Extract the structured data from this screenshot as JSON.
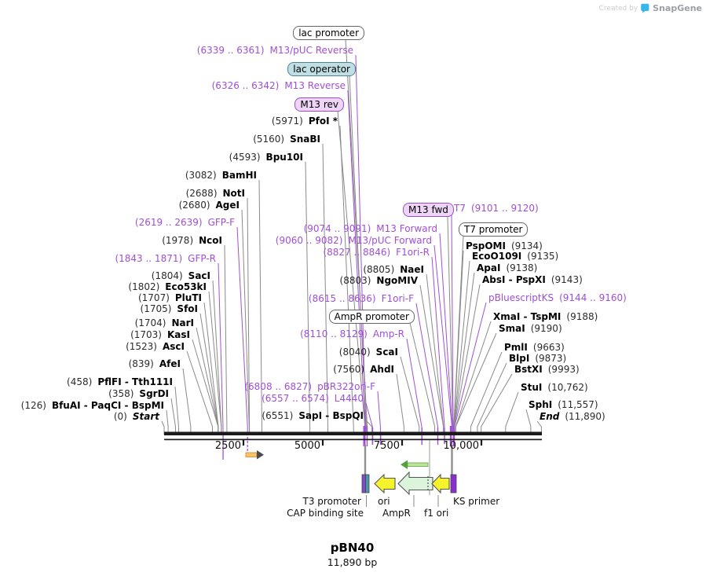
{
  "watermark": {
    "created_by": "Created by",
    "brand": "SnapGene"
  },
  "title": {
    "name": "pBN40",
    "size": "11,890 bp"
  },
  "map": {
    "length_bp": 11890,
    "ruler_ticks": [
      {
        "label": "2500",
        "bp": 2500
      },
      {
        "label": "5000",
        "bp": 5000
      },
      {
        "label": "7500",
        "bp": 7500
      },
      {
        "label": "10,000",
        "bp": 10000
      }
    ]
  },
  "colors": {
    "primer_purple": "#a04fd6",
    "enzyme_gray": "#8a8a8a",
    "backbone_black": "#1a1a1a",
    "primer_box_fill": "#eed5f8",
    "primer_box_border": "#9a4fd0",
    "operator_box_fill": "#bfdfe5",
    "operator_box_border": "#4e8595",
    "ori_yellow": "#f7f32a",
    "ampr_green_fill": "#dcf3dc",
    "arrow_outline": "#555555",
    "ks_primer_purple": "#8b2fd0",
    "t3_promoter_purple": "#7d4ad0",
    "cap_site_teal": "#4d96a8",
    "orange_fill": "#f6c26e",
    "orange_border": "#d89b3e",
    "dark_head": "#4a4a4a",
    "green_head": "#56a03e",
    "green_shaft": "#bce49c",
    "green_shaft_border": "#79b25c",
    "drop_gray": "#909090"
  },
  "annotations": [
    {
      "id": "lac-promoter",
      "kind": "box",
      "box_style": "white",
      "label": "lac promoter",
      "bp": 6400
    },
    {
      "id": "m13-puc-reverse",
      "kind": "primer",
      "pos": "(6339 .. 6361)",
      "name": "M13/pUC Reverse",
      "bp": 6350
    },
    {
      "id": "lac-operator",
      "kind": "box",
      "box_style": "teal",
      "label": "lac operator",
      "bp": 6374
    },
    {
      "id": "m13-reverse",
      "kind": "primer",
      "pos": "(6326 .. 6342)",
      "name": "M13 Reverse",
      "bp": 6334
    },
    {
      "id": "m13-rev",
      "kind": "box",
      "box_style": "purple",
      "label": "M13 rev",
      "bp": 6330
    },
    {
      "id": "pfoi",
      "kind": "enzyme",
      "pos": "(5971)",
      "name": "PfoI *",
      "bp": 5971
    },
    {
      "id": "snabi",
      "kind": "enzyme",
      "pos": "(5160)",
      "name": "SnaBI",
      "bp": 5160
    },
    {
      "id": "bpu10i",
      "kind": "enzyme",
      "pos": "(4593)",
      "name": "Bpu10I",
      "bp": 4593
    },
    {
      "id": "bamhi",
      "kind": "enzyme",
      "pos": "(3082)",
      "name": "BamHI",
      "bp": 3082
    },
    {
      "id": "noti",
      "kind": "enzyme",
      "pos": "(2688)",
      "name": "NotI",
      "bp": 2688
    },
    {
      "id": "agei",
      "kind": "enzyme",
      "pos": "(2680)",
      "name": "AgeI",
      "bp": 2680
    },
    {
      "id": "gfp-f",
      "kind": "primer",
      "pos": "(2619 .. 2639)",
      "name": "GFP-F",
      "bp": 2629
    },
    {
      "id": "ncoi",
      "kind": "enzyme",
      "pos": "(1978)",
      "name": "NcoI",
      "bp": 1978
    },
    {
      "id": "gfp-r",
      "kind": "primer",
      "pos": "(1843 .. 1871)",
      "name": "GFP-R",
      "bp": 1857
    },
    {
      "id": "saci",
      "kind": "enzyme",
      "pos": "(1804)",
      "name": "SacI",
      "bp": 1804
    },
    {
      "id": "eco53ki",
      "kind": "enzyme",
      "pos": "(1802)",
      "name": "Eco53kI",
      "bp": 1802
    },
    {
      "id": "pluti",
      "kind": "enzyme",
      "pos": "(1707)",
      "name": "PluTI",
      "bp": 1707
    },
    {
      "id": "sfoi",
      "kind": "enzyme",
      "pos": "(1705)",
      "name": "SfoI",
      "bp": 1705
    },
    {
      "id": "nari",
      "kind": "enzyme",
      "pos": "(1704)",
      "name": "NarI",
      "bp": 1704
    },
    {
      "id": "kasi",
      "kind": "enzyme",
      "pos": "(1703)",
      "name": "KasI",
      "bp": 1703
    },
    {
      "id": "asci",
      "kind": "enzyme",
      "pos": "(1523)",
      "name": "AscI",
      "bp": 1523
    },
    {
      "id": "afei",
      "kind": "enzyme",
      "pos": "(839)",
      "name": "AfeI",
      "bp": 839
    },
    {
      "id": "pflfi",
      "kind": "enzyme",
      "pos": "(458)",
      "name": "PflFI - Tth111I",
      "bp": 458
    },
    {
      "id": "sgrdi",
      "kind": "enzyme",
      "pos": "(358)",
      "name": "SgrDI",
      "bp": 358
    },
    {
      "id": "bfuai",
      "kind": "enzyme",
      "pos": "(126)",
      "name": "BfuAI - PaqCI - BspMI",
      "bp": 126
    },
    {
      "id": "start",
      "kind": "marker",
      "pos": "(0)",
      "name": "Start",
      "bp": 0
    },
    {
      "id": "m13-forward",
      "kind": "primer",
      "pos": "(9074 .. 9091)",
      "name": "M13 Forward",
      "bp": 9082
    },
    {
      "id": "m13-puc-forward",
      "kind": "primer",
      "pos": "(9060 .. 9082)",
      "name": "M13/pUC Forward",
      "bp": 9071
    },
    {
      "id": "f1ori-r",
      "kind": "primer",
      "pos": "(8827 .. 8846)",
      "name": "F1ori-R",
      "bp": 8836
    },
    {
      "id": "naei",
      "kind": "enzyme",
      "pos": "(8805)",
      "name": "NaeI",
      "bp": 8805
    },
    {
      "id": "ngomiv",
      "kind": "enzyme",
      "pos": "(8803)",
      "name": "NgoMIV",
      "bp": 8803
    },
    {
      "id": "f1ori-f",
      "kind": "primer",
      "pos": "(8615 .. 8636)",
      "name": "F1ori-F",
      "bp": 8625
    },
    {
      "id": "ampr-promoter",
      "kind": "box",
      "box_style": "white",
      "label": "AmpR promoter",
      "bp": 8530
    },
    {
      "id": "amp-r",
      "kind": "primer",
      "pos": "(8110 .. 8129)",
      "name": "Amp-R",
      "bp": 8120
    },
    {
      "id": "scai",
      "kind": "enzyme",
      "pos": "(8040)",
      "name": "ScaI",
      "bp": 8040
    },
    {
      "id": "ahdi",
      "kind": "enzyme",
      "pos": "(7560)",
      "name": "AhdI",
      "bp": 7560
    },
    {
      "id": "pbr322ori-f",
      "kind": "primer",
      "pos": "(6808 .. 6827)",
      "name": "pBR322ori-F",
      "bp": 6818
    },
    {
      "id": "l4440",
      "kind": "primer",
      "pos": "(6557 .. 6574)",
      "name": "L4440",
      "bp": 6566
    },
    {
      "id": "sapi",
      "kind": "enzyme",
      "pos": "(6551)",
      "name": "SapI - BspQI",
      "bp": 6551
    },
    {
      "id": "m13-fwd",
      "kind": "box",
      "box_style": "purple",
      "label": "M13 fwd",
      "bp": 9101
    },
    {
      "id": "t7",
      "kind": "primer",
      "pos": "(9101 .. 9120)",
      "name": "T7",
      "bp": 9110,
      "name_first": true
    },
    {
      "id": "t7-promoter",
      "kind": "box",
      "box_style": "white",
      "label": "T7 promoter",
      "bp": 9128
    },
    {
      "id": "pspomi",
      "kind": "enzyme",
      "pos": "(9134)",
      "name": "PspOMI",
      "bp": 9134,
      "name_first": true
    },
    {
      "id": "ecoo109i",
      "kind": "enzyme",
      "pos": "(9135)",
      "name": "EcoO109I",
      "bp": 9135,
      "name_first": true
    },
    {
      "id": "apai",
      "kind": "enzyme",
      "pos": "(9138)",
      "name": "ApaI",
      "bp": 9138,
      "name_first": true
    },
    {
      "id": "absi",
      "kind": "enzyme",
      "pos": "(9143)",
      "name": "AbsI - PspXI",
      "bp": 9143,
      "name_first": true
    },
    {
      "id": "pbluescriptks",
      "kind": "primer",
      "pos": "(9144 .. 9160)",
      "name": "pBluescriptKS",
      "bp": 9152,
      "name_first": true
    },
    {
      "id": "xmai",
      "kind": "enzyme",
      "pos": "(9188)",
      "name": "XmaI - TspMI",
      "bp": 9188,
      "name_first": true
    },
    {
      "id": "smai",
      "kind": "enzyme",
      "pos": "(9190)",
      "name": "SmaI",
      "bp": 9190,
      "name_first": true
    },
    {
      "id": "pmli",
      "kind": "enzyme",
      "pos": "(9663)",
      "name": "PmlI",
      "bp": 9663,
      "name_first": true
    },
    {
      "id": "blpi",
      "kind": "enzyme",
      "pos": "(9873)",
      "name": "BlpI",
      "bp": 9873,
      "name_first": true
    },
    {
      "id": "bstxi",
      "kind": "enzyme",
      "pos": "(9993)",
      "name": "BstXI",
      "bp": 9993,
      "name_first": true
    },
    {
      "id": "stui",
      "kind": "enzyme",
      "pos": "(10,762)",
      "name": "StuI",
      "bp": 10762,
      "name_first": true
    },
    {
      "id": "sphi",
      "kind": "enzyme",
      "pos": "(11,557)",
      "name": "SphI",
      "bp": 11557,
      "name_first": true
    },
    {
      "id": "end",
      "kind": "marker",
      "pos": "(11,890)",
      "name": "End",
      "bp": 11890,
      "name_first": true
    }
  ],
  "bottom": {
    "t3": "T3 promoter",
    "ori": "ori",
    "ks": "KS primer",
    "cap": "CAP binding site",
    "ampr": "AmpR",
    "f1": "f1 ori"
  }
}
